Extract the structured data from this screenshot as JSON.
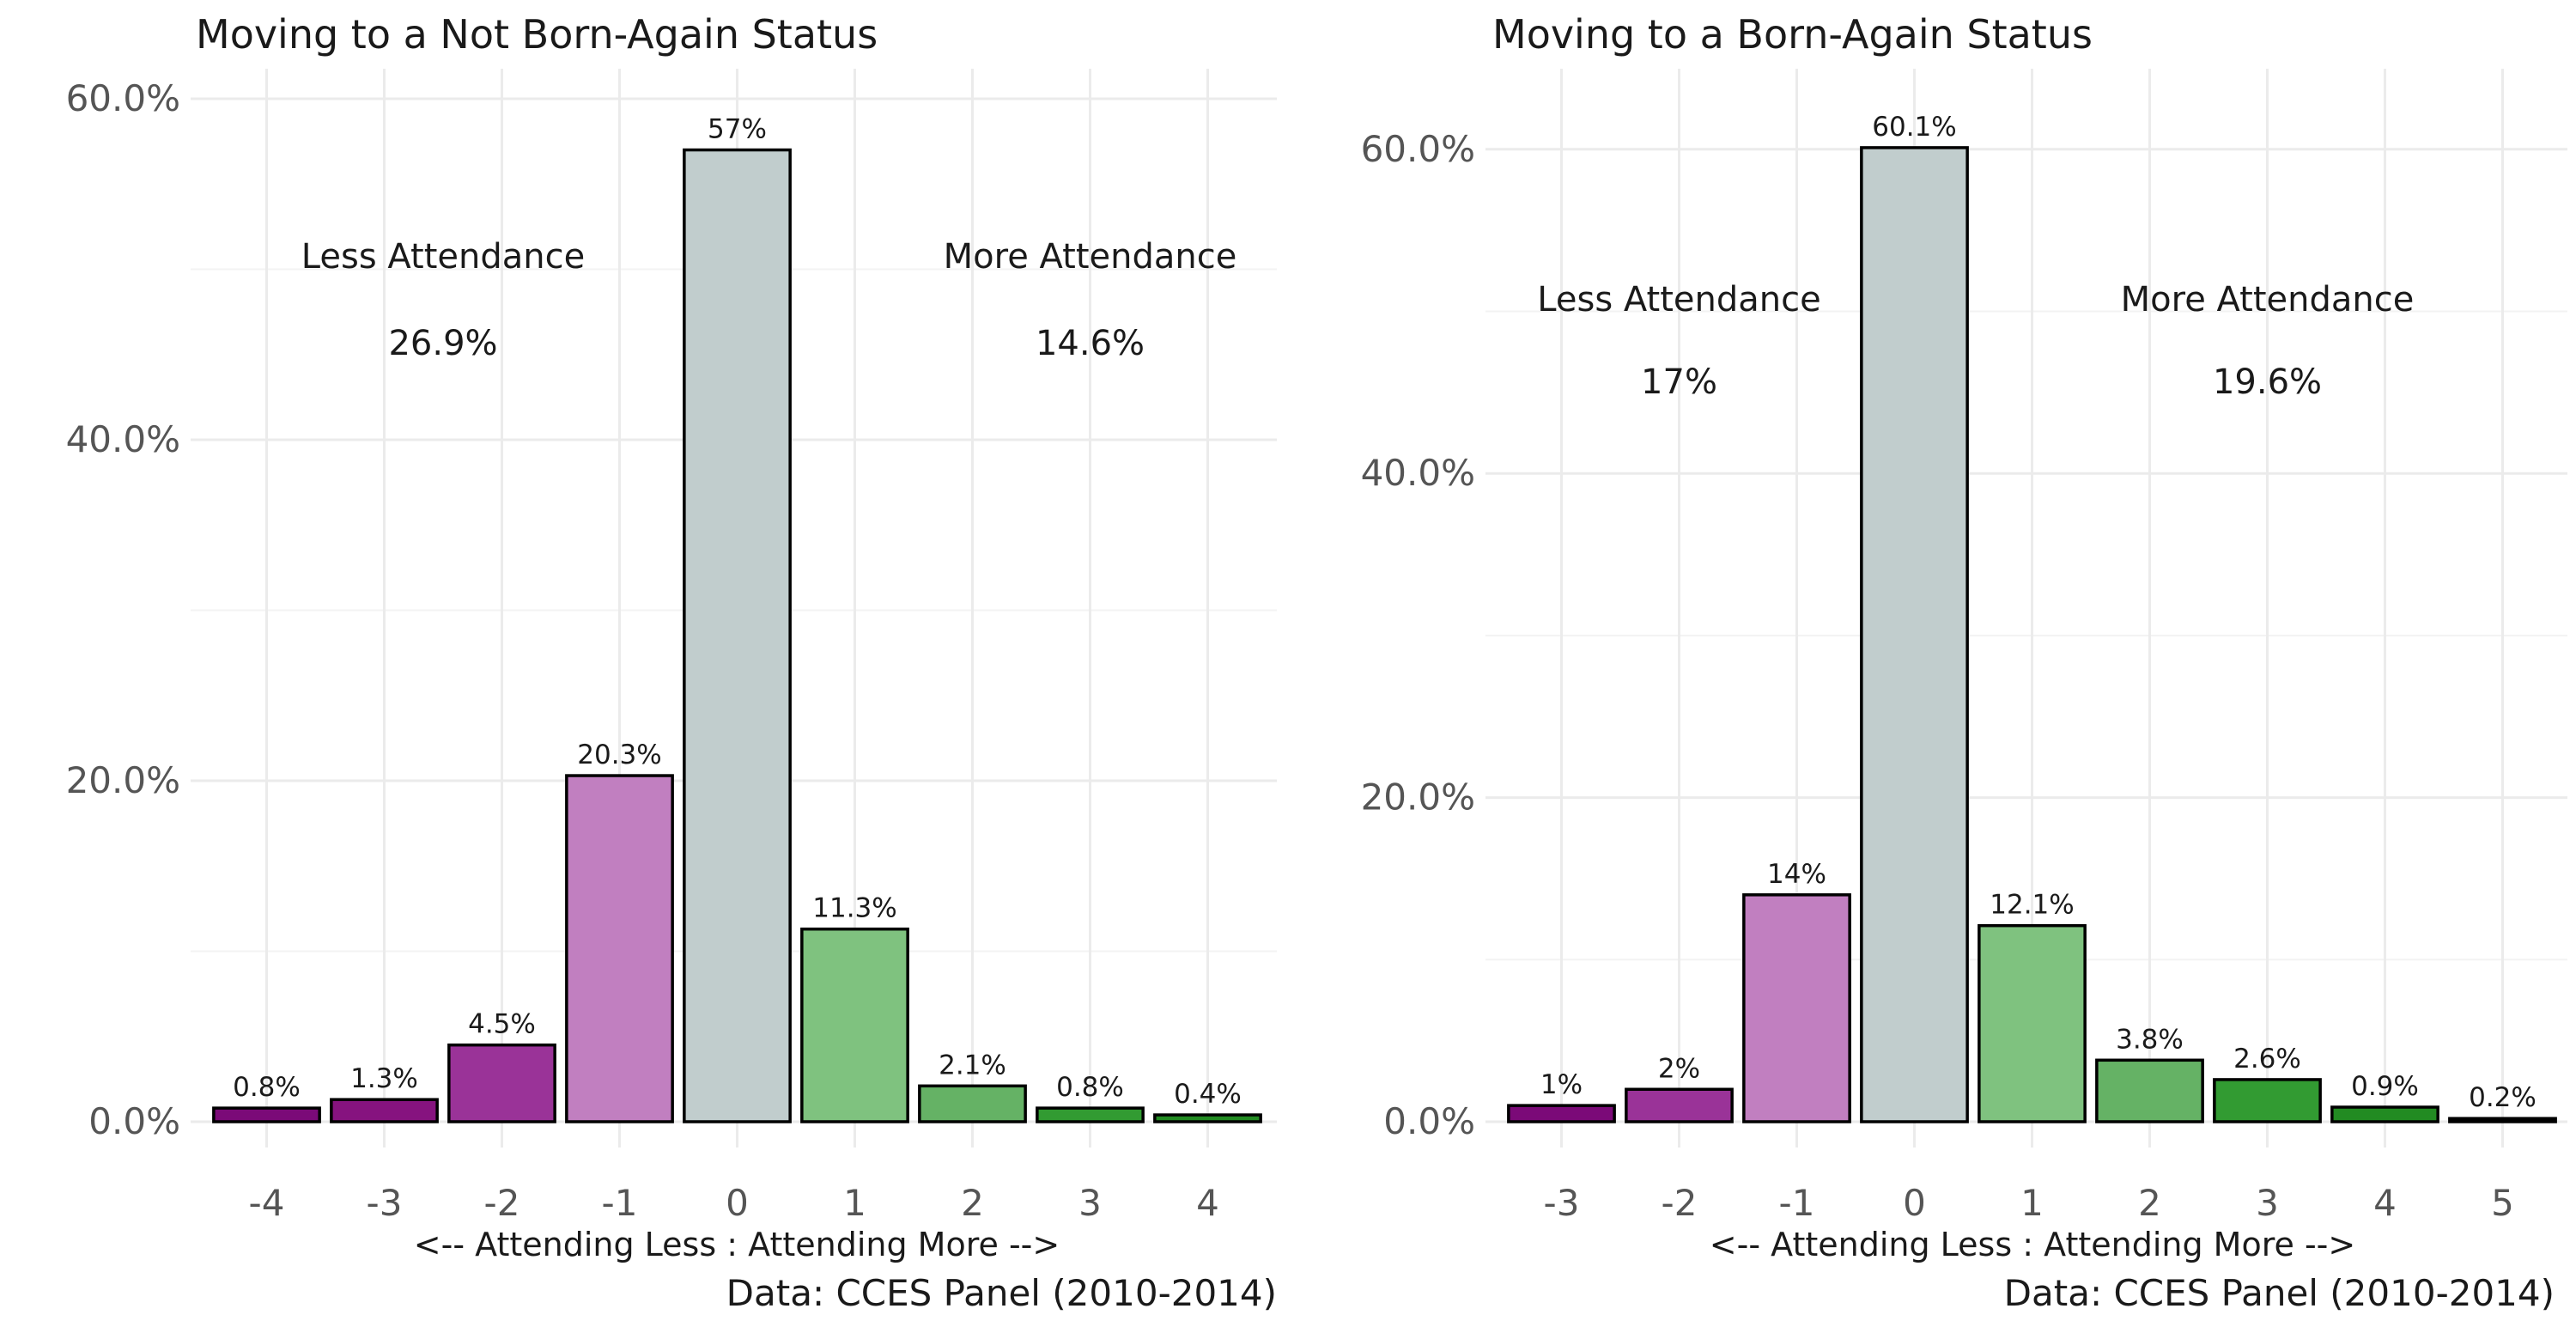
{
  "colors": {
    "bar_colors": [
      "#7b0a78",
      "#86137f",
      "#9a3398",
      "#c17fc0",
      "#c1cdcd",
      "#7fc27f",
      "#65b265",
      "#329b32",
      "#228b22",
      "#000000"
    ]
  },
  "chart_data": [
    {
      "type": "bar",
      "title": "Moving to a Not Born-Again Status",
      "xlabel": "<-- Attending Less : Attending More -->",
      "caption": "Data: CCES Panel (2010-2014)",
      "categories": [
        "-4",
        "-3",
        "-2",
        "-1",
        "0",
        "1",
        "2",
        "3",
        "4"
      ],
      "values": [
        0.8,
        1.3,
        4.5,
        20.3,
        57,
        11.3,
        2.1,
        0.8,
        0.4
      ],
      "data_labels": [
        "0.8%",
        "1.3%",
        "4.5%",
        "20.3%",
        "57%",
        "11.3%",
        "2.1%",
        "0.8%",
        "0.4%"
      ],
      "color_index": [
        0,
        1,
        2,
        3,
        4,
        5,
        6,
        7,
        8
      ],
      "y_ticks": [
        "0.0%",
        "20.0%",
        "40.0%",
        "60.0%"
      ],
      "ylim": [
        0,
        60
      ],
      "grid": true,
      "annotations": [
        {
          "text": "Less Attendance",
          "x": -2.5,
          "y": 50
        },
        {
          "text": "26.9%",
          "x": -2.5,
          "y": 45
        },
        {
          "text": "More Attendance",
          "x": 3,
          "y": 50
        },
        {
          "text": "14.6%",
          "x": 3,
          "y": 45
        }
      ]
    },
    {
      "type": "bar",
      "title": "Moving to a Born-Again Status",
      "xlabel": "<-- Attending Less : Attending More -->",
      "caption": "Data: CCES Panel (2010-2014)",
      "categories": [
        "-3",
        "-2",
        "-1",
        "0",
        "1",
        "2",
        "3",
        "4",
        "5"
      ],
      "values": [
        1,
        2,
        14,
        60.1,
        12.1,
        3.8,
        2.6,
        0.9,
        0.2
      ],
      "data_labels": [
        "1%",
        "2%",
        "14%",
        "60.1%",
        "12.1%",
        "3.8%",
        "2.6%",
        "0.9%",
        "0.2%"
      ],
      "color_index": [
        0,
        2,
        3,
        4,
        5,
        6,
        7,
        8,
        9
      ],
      "y_ticks": [
        "0.0%",
        "20.0%",
        "40.0%",
        "60.0%"
      ],
      "ylim": [
        0,
        60
      ],
      "grid": true,
      "annotations": [
        {
          "text": "Less Attendance",
          "x": -2,
          "y": 50
        },
        {
          "text": "17%",
          "x": -2,
          "y": 45
        },
        {
          "text": "More Attendance",
          "x": 3,
          "y": 50
        },
        {
          "text": "19.6%",
          "x": 3,
          "y": 45
        }
      ]
    }
  ]
}
